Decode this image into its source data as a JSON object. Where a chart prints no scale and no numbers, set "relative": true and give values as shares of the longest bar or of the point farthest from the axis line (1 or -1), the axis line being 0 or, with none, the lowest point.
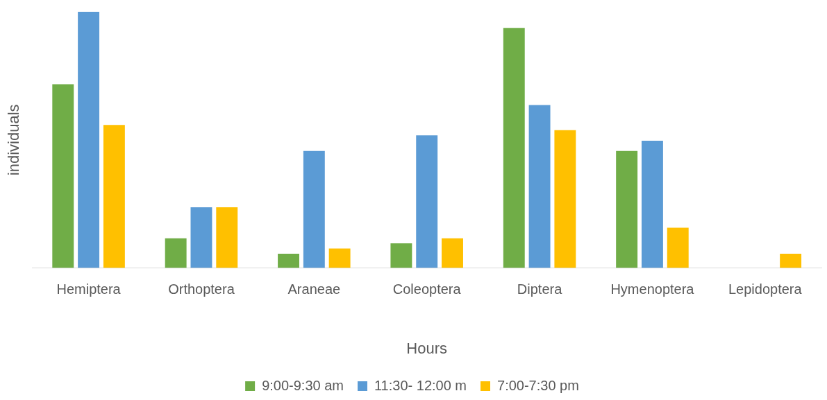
{
  "chart_data": {
    "type": "bar",
    "relative": true,
    "xlabel": "Hours",
    "ylabel": "individuals",
    "legend": "bottom",
    "grid": false,
    "categories": [
      "Hemiptera",
      "Orthoptera",
      "Araneae",
      "Coleoptera",
      "Diptera",
      "Hymenoptera",
      "Lepidoptera"
    ],
    "series": [
      {
        "name": "9:00-9:30 am",
        "color": "#70ad47",
        "values": [
          0.717,
          0.116,
          0.056,
          0.096,
          0.937,
          0.457,
          0
        ]
      },
      {
        "name": "11:30- 12:00 m",
        "color": "#5b9bd5",
        "values": [
          1,
          0.237,
          0.457,
          0.518,
          0.636,
          0.497,
          0
        ]
      },
      {
        "name": "7:00-7:30 pm",
        "color": "#ffc000",
        "values": [
          0.558,
          0.237,
          0.076,
          0.116,
          0.538,
          0.157,
          0.056
        ]
      }
    ]
  }
}
